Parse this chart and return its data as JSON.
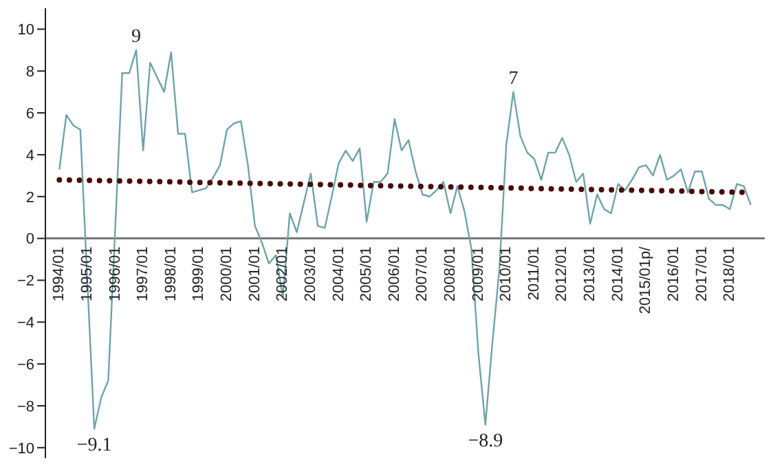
{
  "chart_data": {
    "type": "line",
    "categories": [
      "1994/01",
      null,
      null,
      null,
      "1995/01",
      null,
      null,
      null,
      "1996/01",
      null,
      null,
      null,
      "1997/01",
      null,
      null,
      null,
      "1998/01",
      null,
      null,
      null,
      "1999/01",
      null,
      null,
      null,
      "2000/01",
      null,
      null,
      null,
      "2001/01",
      null,
      null,
      null,
      "2002/01",
      null,
      null,
      null,
      "2003/01",
      null,
      null,
      null,
      "2004/01",
      null,
      null,
      null,
      "2005/01",
      null,
      null,
      null,
      "2006/01",
      null,
      null,
      null,
      "2007/01",
      null,
      null,
      null,
      "2008/01",
      null,
      null,
      null,
      "2009/01",
      null,
      null,
      null,
      "2010/01",
      null,
      null,
      null,
      "2011/01",
      null,
      null,
      null,
      "2012/01",
      null,
      null,
      null,
      "2013/01",
      null,
      null,
      null,
      "2014/01",
      null,
      null,
      null,
      "2015/01p/",
      null,
      null,
      null,
      "2016/01",
      null,
      null,
      null,
      "2017/01",
      null,
      null,
      null,
      "2018/01",
      null,
      null,
      null
    ],
    "series": [
      {
        "color": "#6fa3ab",
        "values": [
          3.3,
          5.9,
          5.4,
          5.2,
          -2,
          -9.1,
          -7.6,
          -6.8,
          0.5,
          7.9,
          7.9,
          9,
          4.2,
          8.4,
          7.7,
          7,
          8.9,
          5,
          5,
          2.2,
          2.3,
          2.4,
          2.9,
          3.5,
          5.2,
          5.5,
          5.6,
          3.5,
          0.6,
          -0.2,
          -1.2,
          -0.8,
          -2.8,
          1.2,
          0.3,
          1.7,
          3.1,
          0.6,
          0.5,
          2,
          3.6,
          4.2,
          3.7,
          4.3,
          0.8,
          2.7,
          2.7,
          3.1,
          5.7,
          4.2,
          4.7,
          3.2,
          2.1,
          2,
          2.3,
          2.7,
          1.2,
          2.5,
          1.3,
          -0.5,
          -5.5,
          -8.9,
          -5,
          -1.5,
          4.5,
          7,
          4.9,
          4.1,
          3.8,
          2.8,
          4.1,
          4.1,
          4.8,
          4,
          2.7,
          3.1,
          0.7,
          2.1,
          1.4,
          1.2,
          2.6,
          2.3,
          2.8,
          3.4,
          3.5,
          3,
          4,
          2.8,
          3,
          3.3,
          2.2,
          3.2,
          3.2,
          1.9,
          1.6,
          1.6,
          1.4,
          2.6,
          2.5,
          1.6
        ]
      },
      {
        "type": "line",
        "color": "#4a0a0a",
        "line_style": "dotted",
        "marker": "none",
        "values": [
          2.8,
          null,
          null,
          null,
          null,
          null,
          null,
          null,
          null,
          null,
          null,
          null,
          null,
          null,
          null,
          null,
          null,
          null,
          null,
          null,
          null,
          null,
          null,
          null,
          null,
          null,
          null,
          null,
          null,
          null,
          null,
          null,
          null,
          null,
          null,
          null,
          null,
          null,
          null,
          null,
          null,
          null,
          null,
          null,
          null,
          null,
          null,
          null,
          null,
          null,
          null,
          null,
          null,
          null,
          null,
          null,
          null,
          null,
          null,
          null,
          null,
          null,
          null,
          null,
          null,
          null,
          null,
          null,
          null,
          null,
          null,
          null,
          null,
          null,
          null,
          null,
          null,
          null,
          null,
          null,
          null,
          null,
          null,
          null,
          null,
          null,
          null,
          null,
          null,
          null,
          null,
          null,
          null,
          null,
          null,
          null,
          null,
          null,
          null,
          2.2
        ]
      }
    ],
    "ylim": [
      -10.5,
      11
    ],
    "yticks": [
      -10,
      -8,
      -6,
      -4,
      -2,
      0,
      2,
      4,
      6,
      8,
      10
    ],
    "marker": "none",
    "line_style": "solid",
    "annotations": [
      {
        "text": "9",
        "y": 9
      },
      {
        "text": "−9.1",
        "y": -9.1
      },
      {
        "text": "−8.9",
        "y": -8.9
      },
      {
        "text": "7",
        "y": 7
      }
    ]
  }
}
